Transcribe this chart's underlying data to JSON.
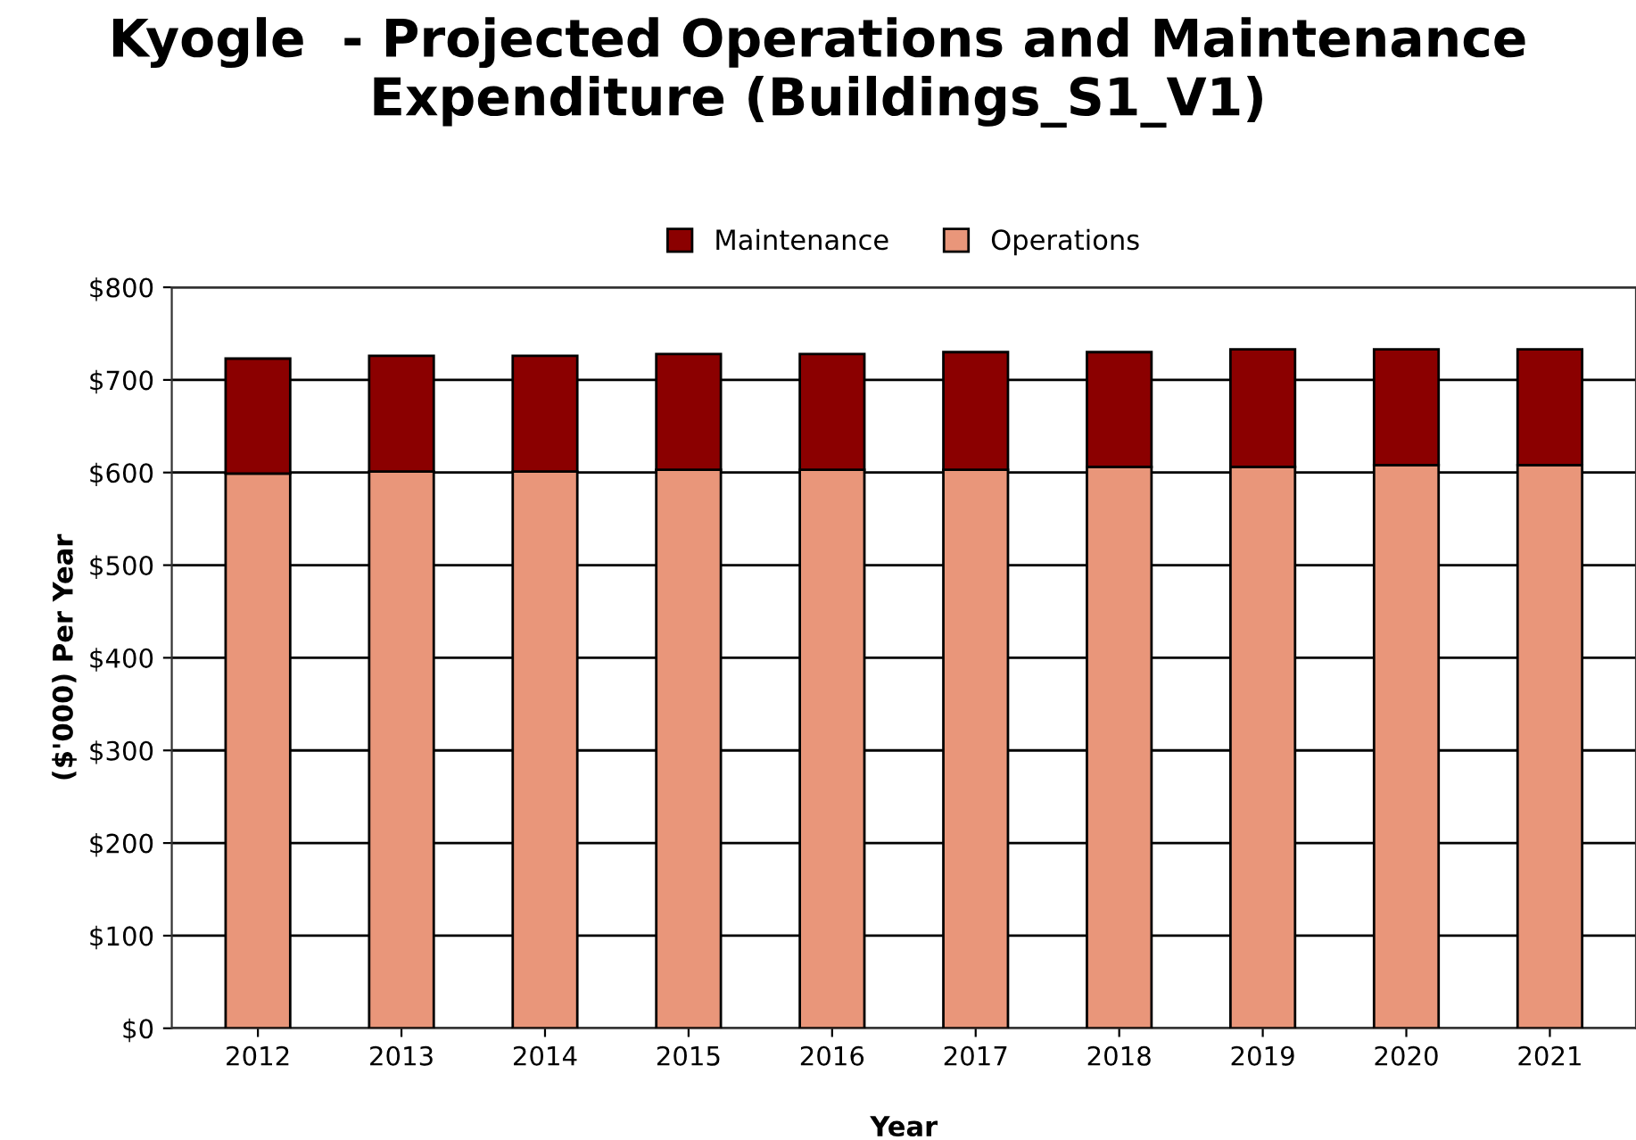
{
  "chart_data": {
    "type": "bar",
    "stacked": true,
    "title": "Kyogle  - Projected Operations and Maintenance\nExpenditure (Buildings_S1_V1)",
    "xlabel": "Year",
    "ylabel": "($'000) Per Year",
    "categories": [
      "2012",
      "2013",
      "2014",
      "2015",
      "2016",
      "2017",
      "2018",
      "2019",
      "2020",
      "2021"
    ],
    "series": [
      {
        "name": "Operations",
        "color": "#e9967a",
        "values": [
          599,
          601,
          601,
          603,
          603,
          603,
          606,
          606,
          608,
          608
        ]
      },
      {
        "name": "Maintenance",
        "color": "#8b0000",
        "values": [
          124,
          125,
          125,
          125,
          125,
          127,
          124,
          127,
          125,
          125
        ]
      }
    ],
    "ylim": [
      0,
      800
    ],
    "yticks": [
      {
        "value": 0,
        "label": "$0"
      },
      {
        "value": 100,
        "label": "$100"
      },
      {
        "value": 200,
        "label": "$200"
      },
      {
        "value": 300,
        "label": "$300"
      },
      {
        "value": 400,
        "label": "$400"
      },
      {
        "value": 500,
        "label": "$500"
      },
      {
        "value": 600,
        "label": "$600"
      },
      {
        "value": 700,
        "label": "$700"
      },
      {
        "value": 800,
        "label": "$800"
      }
    ],
    "grid": "y",
    "legend": "top"
  }
}
